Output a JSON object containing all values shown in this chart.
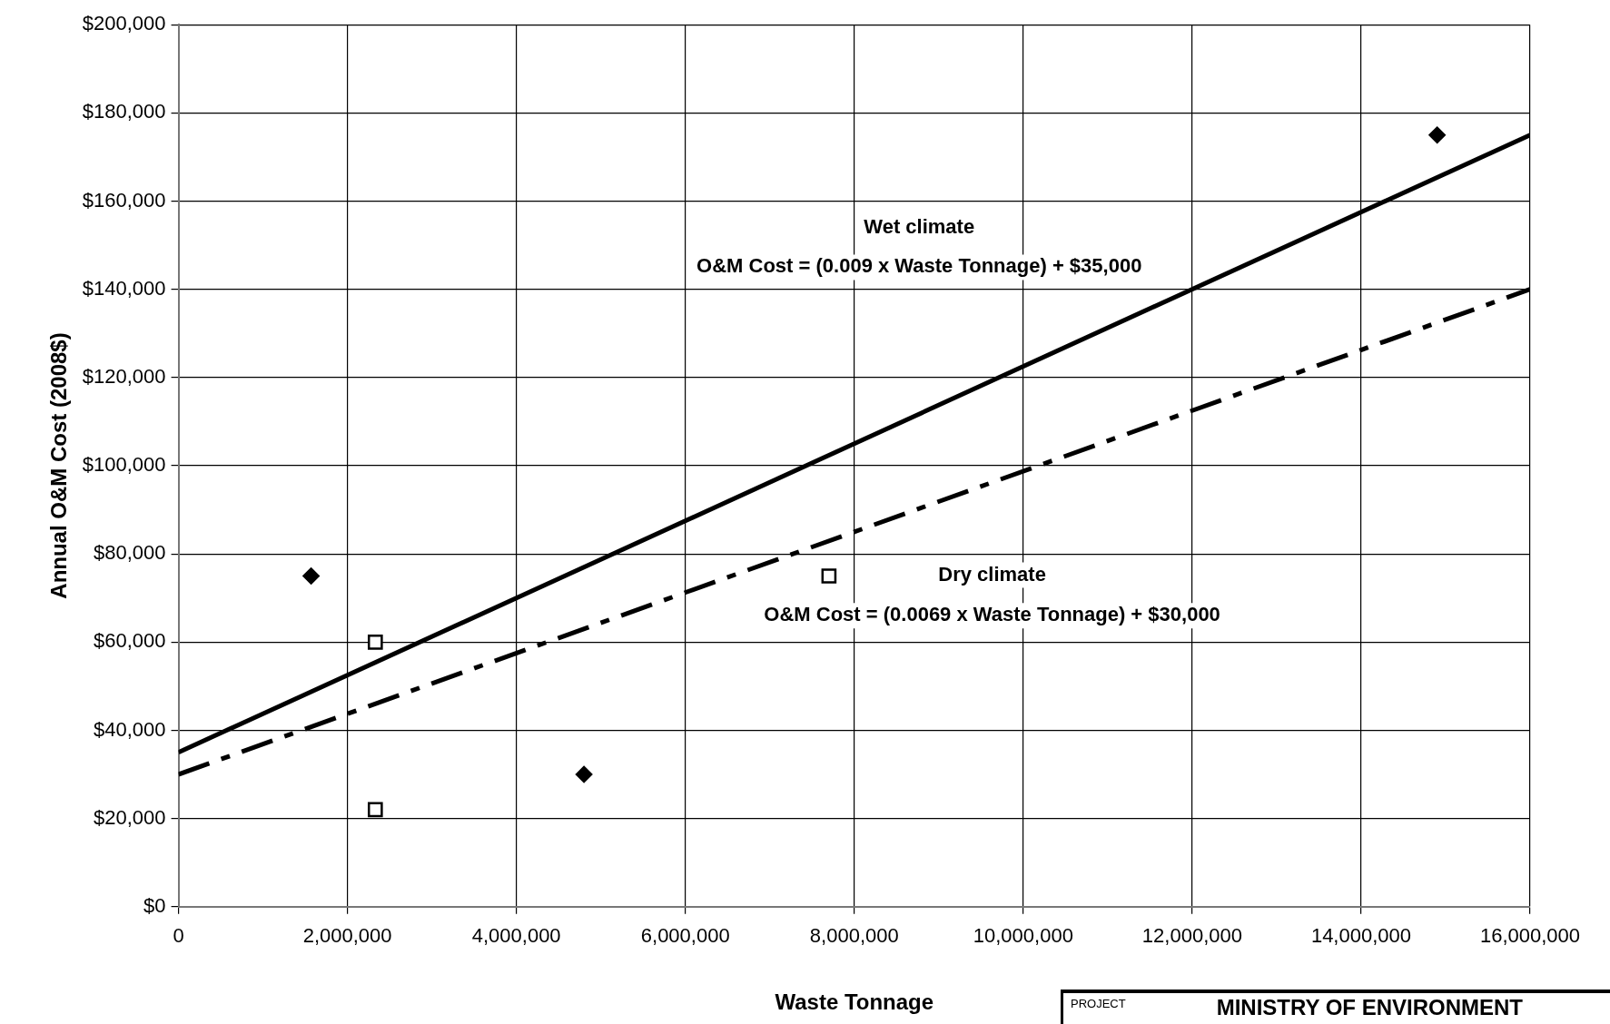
{
  "chart_data": {
    "type": "scatter",
    "xlabel": "Waste Tonnage",
    "ylabel": "Annual O&M Cost (2008$)",
    "xlim": [
      0,
      16000000
    ],
    "ylim": [
      0,
      200000
    ],
    "xticks": [
      0,
      {
        "value": 2000000,
        "label": "2,000,000"
      },
      {
        "value": 4000000,
        "label": "4,000,000"
      },
      {
        "value": 6000000,
        "label": "6,000,000"
      },
      {
        "value": 8000000,
        "label": "8,000,000"
      },
      {
        "value": 10000000,
        "label": "10,000,000"
      },
      {
        "value": 12000000,
        "label": "12,000,000"
      },
      {
        "value": 14000000,
        "label": "14,000,000"
      },
      {
        "value": 16000000,
        "label": "16,000,000"
      }
    ],
    "yticks": [
      {
        "value": 0,
        "label": "$0"
      },
      {
        "value": 20000,
        "label": "$20,000"
      },
      {
        "value": 40000,
        "label": "$40,000"
      },
      {
        "value": 60000,
        "label": "$60,000"
      },
      {
        "value": 80000,
        "label": "$80,000"
      },
      {
        "value": 100000,
        "label": "$100,000"
      },
      {
        "value": 120000,
        "label": "$120,000"
      },
      {
        "value": 140000,
        "label": "$140,000"
      },
      {
        "value": 160000,
        "label": "$160,000"
      },
      {
        "value": 180000,
        "label": "$180,000"
      },
      {
        "value": 200000,
        "label": "$200,000"
      }
    ],
    "grid": true,
    "legend": false,
    "series": [
      {
        "type": "scatter",
        "color": "#000000",
        "marker": "diamond",
        "x": [
          1570000,
          4800000,
          14900000
        ],
        "values": [
          75000,
          30000,
          175000
        ]
      },
      {
        "type": "scatter",
        "color": "#000000",
        "marker": "square",
        "x": [
          2330000,
          2330000,
          7700000
        ],
        "values": [
          60000,
          22000,
          75000
        ]
      },
      {
        "type": "line",
        "color": "#000000",
        "marker": "none",
        "line_style": "solid",
        "x": [
          0,
          16000000
        ],
        "values": [
          35000,
          175000
        ]
      },
      {
        "type": "line",
        "color": "#000000",
        "marker": "none",
        "line_style": "dashed",
        "x": [
          0,
          16000000
        ],
        "values": [
          30000,
          140000
        ]
      }
    ],
    "annotations": [
      "Wet climate",
      "O&M Cost = (0.009 x Waste Tonnage) + $35,000",
      "Dry climate",
      "O&M Cost = (0.0069 x Waste Tonnage) + $30,000",
      "PROJECT",
      "MINISTRY OF ENVIRONMENT"
    ]
  }
}
